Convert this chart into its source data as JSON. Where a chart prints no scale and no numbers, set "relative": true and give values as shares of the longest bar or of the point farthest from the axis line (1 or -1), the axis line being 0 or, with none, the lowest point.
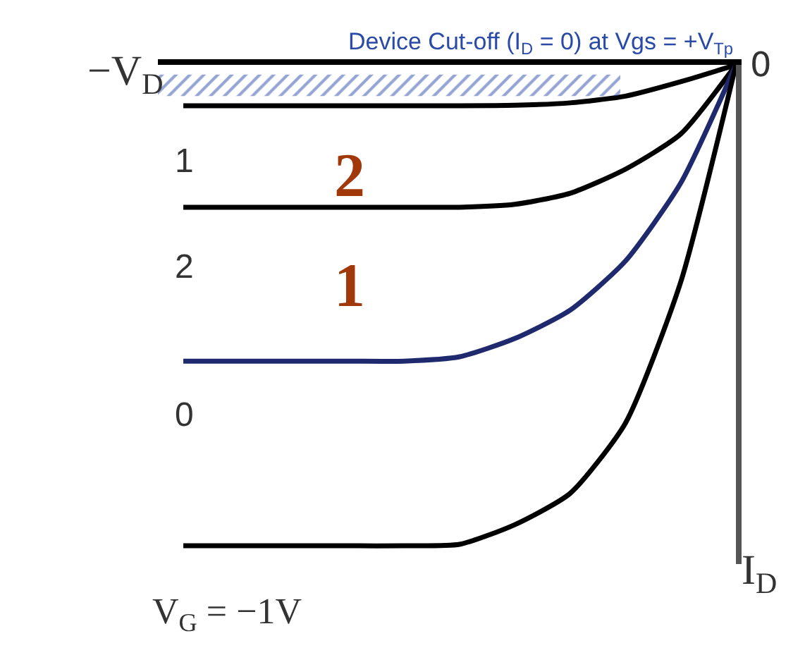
{
  "chart_data": {
    "type": "line",
    "relative": true,
    "xlabel": "−V$_{D}$",
    "ylabel": "I$_{D}$",
    "categories": [
      null,
      null,
      null,
      null,
      null,
      null,
      null,
      null,
      null,
      null,
      null
    ],
    "series": [
      {
        "color": "#000000",
        "values": [
          -0.085,
          -0.085,
          -0.085,
          -0.085,
          -0.085,
          -0.085,
          -0.084,
          -0.079,
          -0.065,
          -0.035,
          0
        ]
      },
      {
        "color": "#000000",
        "values": [
          -0.296,
          -0.296,
          -0.296,
          -0.296,
          -0.296,
          -0.296,
          -0.29,
          -0.267,
          -0.217,
          -0.144,
          0
        ]
      },
      {
        "color": "#1f2a6e",
        "values": [
          -0.616,
          -0.616,
          -0.616,
          -0.616,
          -0.616,
          -0.607,
          -0.569,
          -0.51,
          -0.408,
          -0.246,
          0
        ]
      },
      {
        "color": "#000000",
        "values": [
          -1,
          -1,
          -1,
          -1,
          -1,
          -0.997,
          -0.956,
          -0.891,
          -0.745,
          -0.452,
          0
        ]
      }
    ],
    "bands": [
      {
        "axis": "y",
        "from": -0.02,
        "to": -0.065,
        "color": "#2a4aa8",
        "label": "Device Cut-off (I$_{D}$ = 0) at Vgs = +V$_{Tp}$"
      }
    ],
    "annotations": [
      "0",
      "1",
      "2",
      "0",
      "V$_{G}$ = −1V",
      "2",
      "1"
    ],
    "marker": "none",
    "line_style": "solid"
  }
}
